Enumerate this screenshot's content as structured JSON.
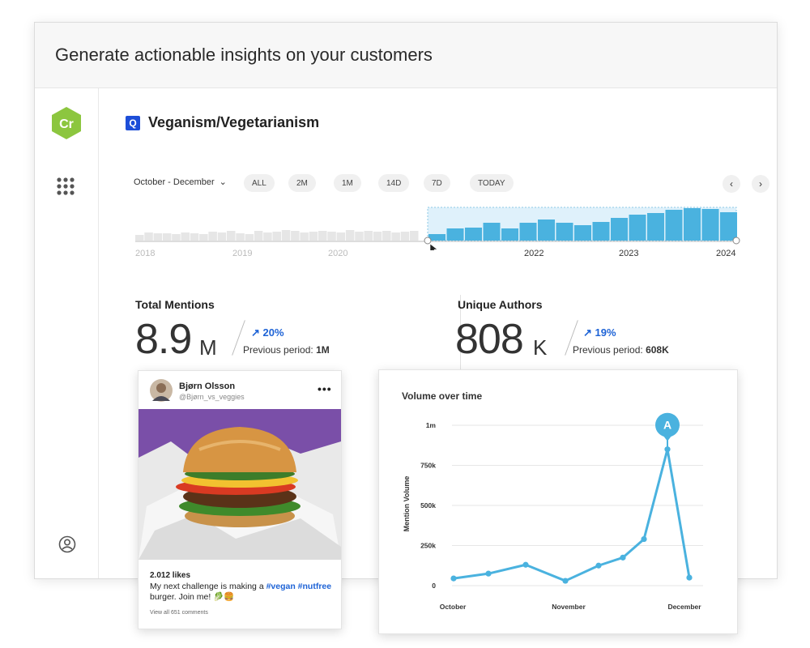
{
  "header": {
    "title": "Generate actionable insights on your customers"
  },
  "sidebar": {
    "logo_text": "Cr"
  },
  "topic": {
    "icon_letter": "Q",
    "title": "Veganism/Vegetarianism"
  },
  "filters": {
    "range_label": "October - December",
    "pills": [
      "ALL",
      "2M",
      "1M",
      "14D",
      "7D",
      "TODAY"
    ]
  },
  "timeline": {
    "years": [
      "2018",
      "2019",
      "2020",
      "2022",
      "2023",
      "2024"
    ],
    "colors": {
      "selected": "#4ab2df",
      "unselected": "#e6e6e6",
      "selection_bg": "#dff1fb"
    }
  },
  "stats": {
    "total_mentions": {
      "label": "Total Mentions",
      "value": "8.9",
      "unit": "M",
      "delta": "20%",
      "prev_label": "Previous period:",
      "prev_value": "1M"
    },
    "unique_authors": {
      "label": "Unique Authors",
      "value": "808",
      "unit": "K",
      "delta": "19%",
      "prev_label": "Previous period:",
      "prev_value": "608K"
    }
  },
  "post": {
    "author": "Bjørn Olsson",
    "handle": "@Bjørn_vs_veggies",
    "likes": "2.012 likes",
    "caption_prefix": "My next challenge is making a",
    "hashtags": "#vegan #nutfree",
    "caption_suffix": "burger. Join me! 🥬🍔",
    "comments_link": "View all 651 comments"
  },
  "chart_data": {
    "type": "line",
    "title": "Volume over time",
    "ylabel": "Mention Volume",
    "xlabel": "",
    "x_ticks": [
      "October",
      "November",
      "December"
    ],
    "y_ticks": [
      "0",
      "250k",
      "500k",
      "750k",
      "1m"
    ],
    "ylim": [
      0,
      1000000
    ],
    "series": [
      {
        "values": [
          45000,
          75000,
          130000,
          30000,
          125000,
          175000,
          290000,
          850000,
          50000
        ]
      }
    ],
    "annotation": {
      "label": "A",
      "point_index": 7
    },
    "line_color": "#4ab2df"
  }
}
